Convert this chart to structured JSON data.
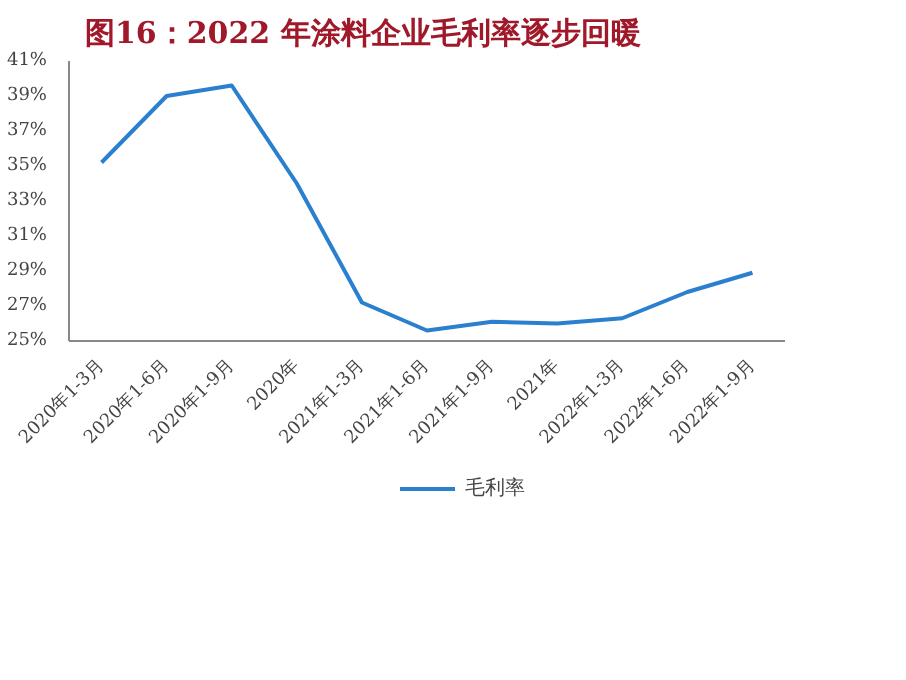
{
  "chart_data": {
    "type": "line",
    "title": "图16：2022 年涂料企业毛利率逐步回暖",
    "categories": [
      "2020年1-3月",
      "2020年1-6月",
      "2020年1-9月",
      "2020年",
      "2021年1-3月",
      "2021年1-6月",
      "2021年1-9月",
      "2021年",
      "2022年1-3月",
      "2022年1-6月",
      "2022年1-9月"
    ],
    "series": [
      {
        "name": "毛利率",
        "color": "#2a7fcf",
        "values": [
          35.2,
          39.0,
          39.6,
          34.0,
          27.2,
          25.6,
          26.1,
          26.0,
          26.3,
          27.8,
          28.9
        ]
      }
    ],
    "ylim": [
      25,
      41
    ],
    "yticks": [
      {
        "value": 25,
        "label": "25%"
      },
      {
        "value": 27,
        "label": "27%"
      },
      {
        "value": 29,
        "label": "29%"
      },
      {
        "value": 31,
        "label": "31%"
      },
      {
        "value": 33,
        "label": "33%"
      },
      {
        "value": 35,
        "label": "35%"
      },
      {
        "value": 37,
        "label": "37%"
      },
      {
        "value": 39,
        "label": "39%"
      },
      {
        "value": 41,
        "label": "41%"
      }
    ],
    "grid": false,
    "legend": "bottom",
    "marker": "none",
    "line_style": "solid"
  }
}
